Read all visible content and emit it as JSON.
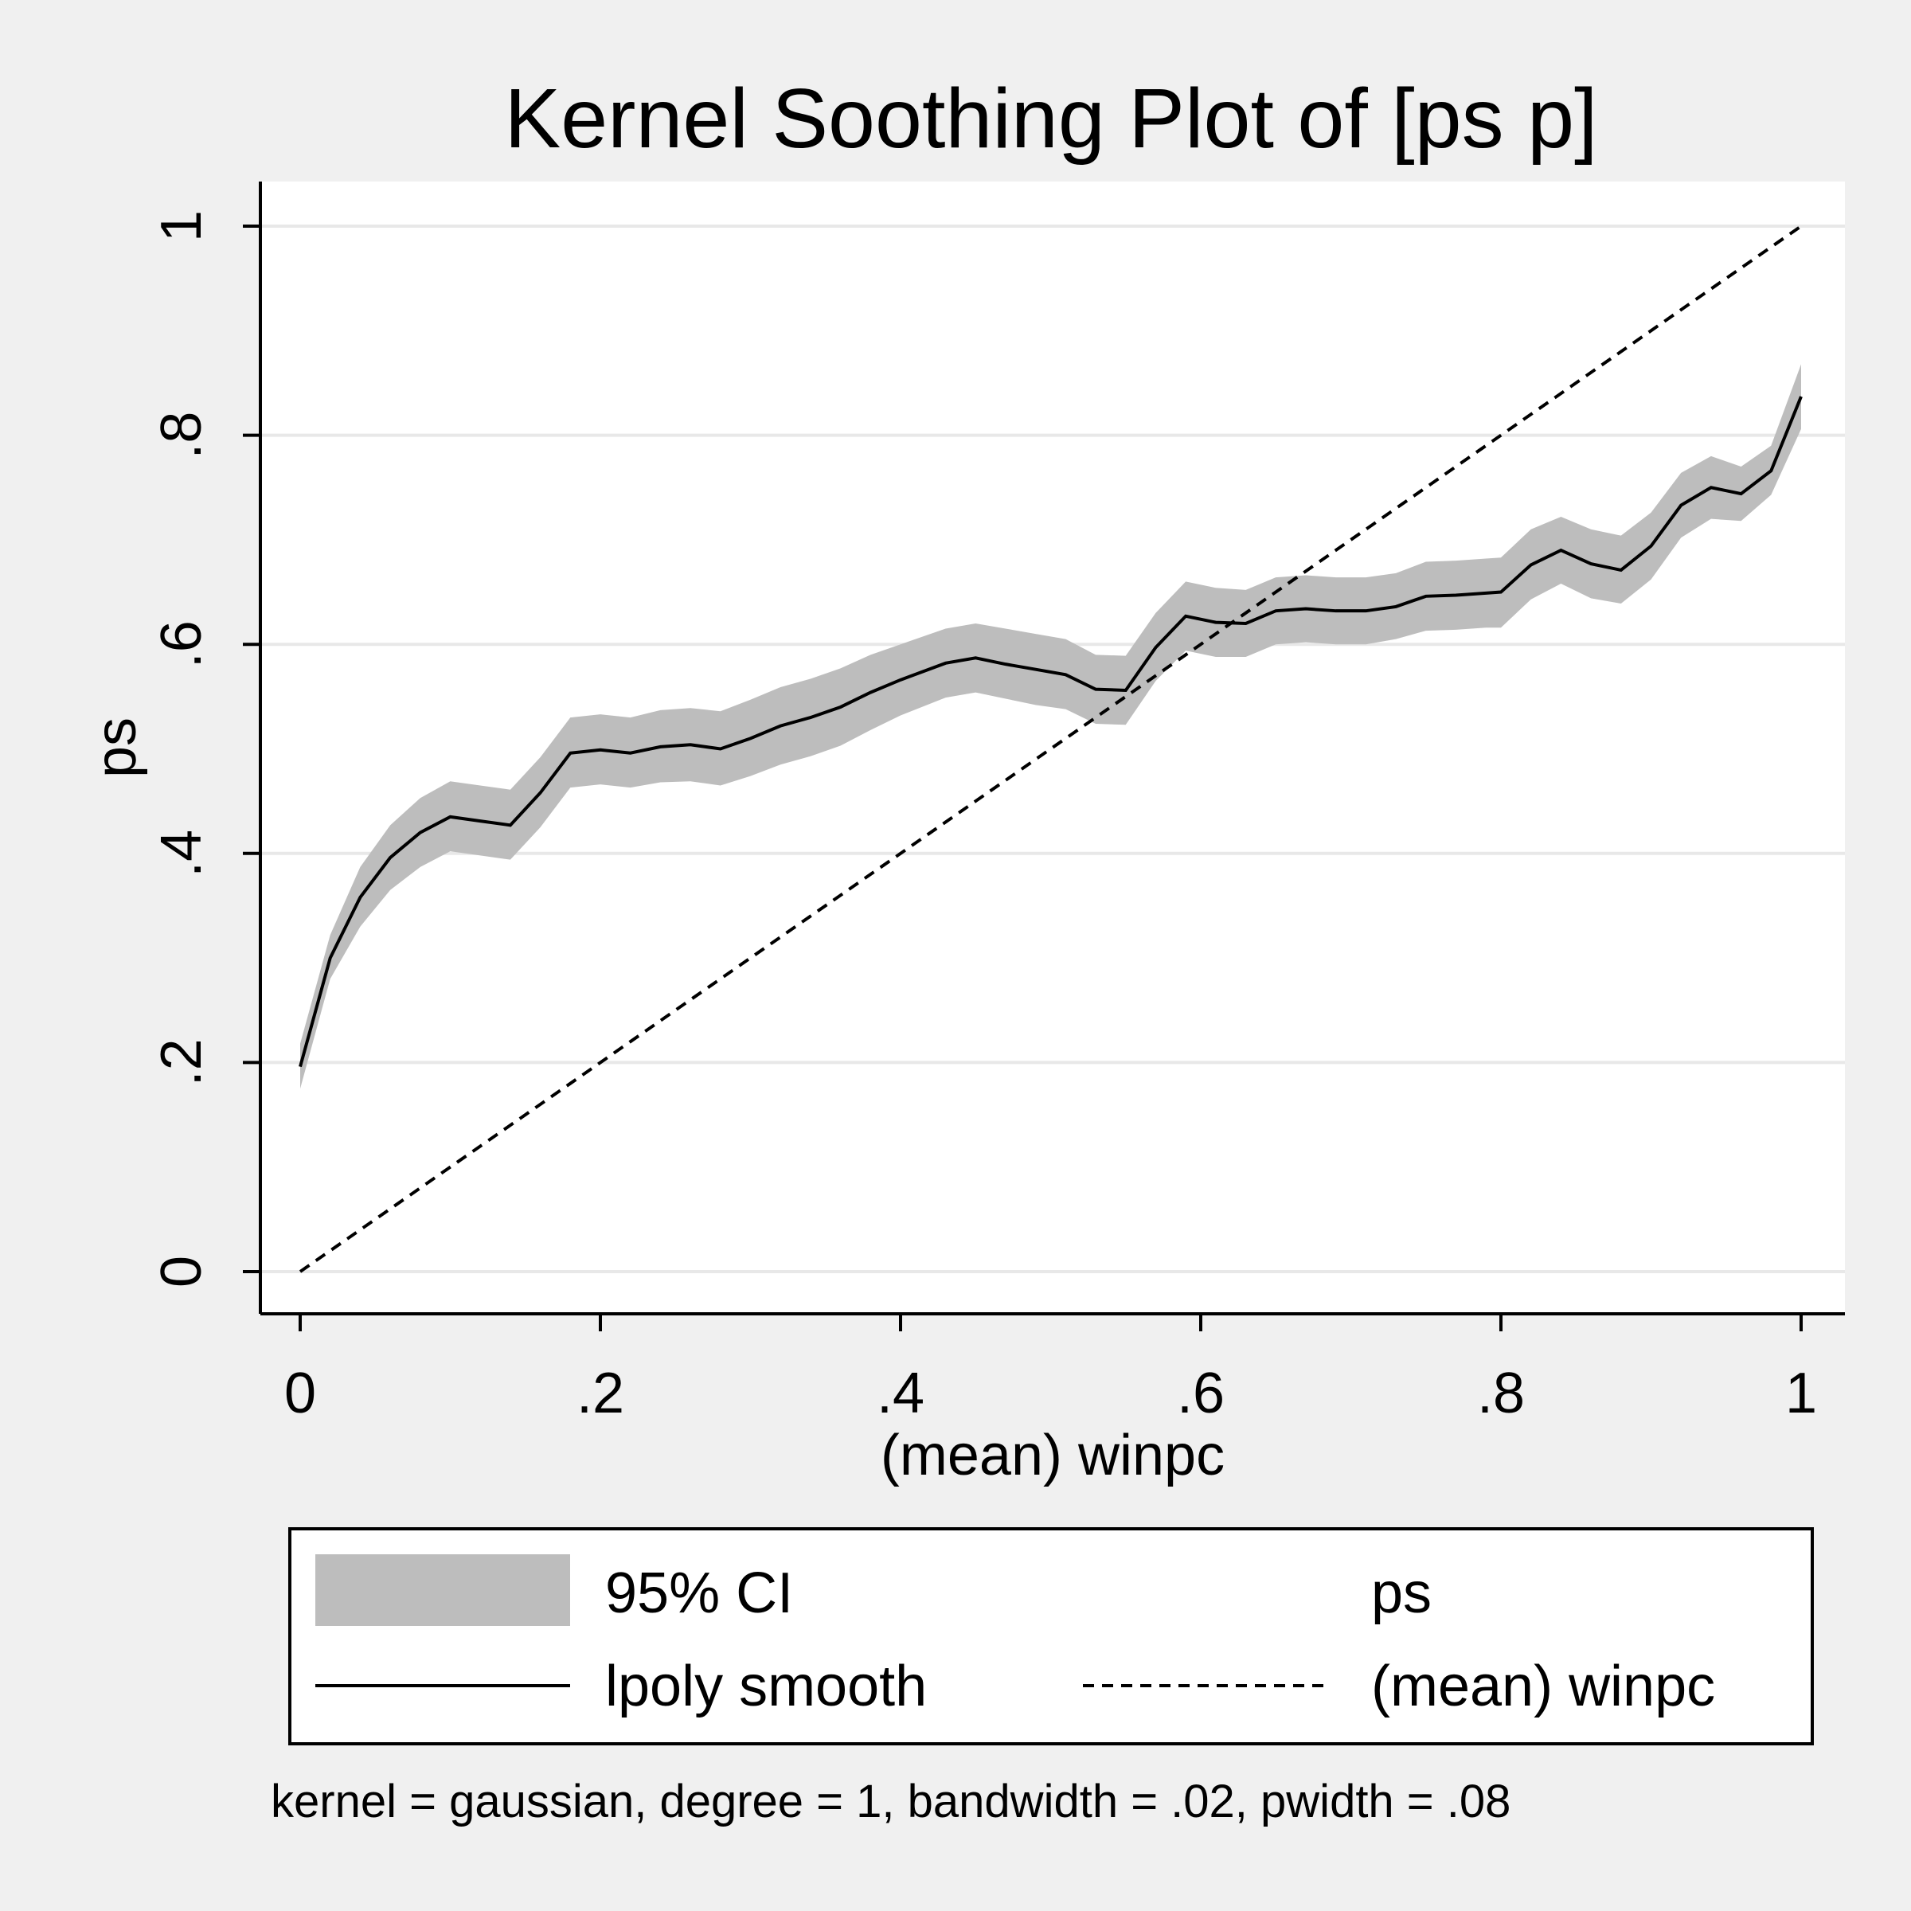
{
  "chart_data": {
    "type": "line",
    "title": "Kernel Soothing Plot of [ps p]",
    "xlabel": "(mean) winpc",
    "ylabel": "ps",
    "note": "kernel = gaussian, degree = 1, bandwidth = .02, pwidth = .08",
    "xlim": [
      0,
      1
    ],
    "ylim": [
      0,
      1
    ],
    "x_ticks": [
      0,
      0.2,
      0.4,
      0.6,
      0.8,
      1
    ],
    "x_tick_labels": [
      "0",
      ".2",
      ".4",
      ".6",
      ".8",
      "1"
    ],
    "y_ticks": [
      0,
      0.2,
      0.4,
      0.6,
      0.8,
      1
    ],
    "y_tick_labels": [
      "0",
      ".2",
      ".4",
      ".6",
      ".8",
      "1"
    ],
    "grid": "horizontal",
    "legend": {
      "position": "bottom",
      "entries": [
        "95% CI",
        "ps",
        "lpoly smooth",
        "(mean) winpc"
      ]
    },
    "colors": {
      "band": "#bdbdbd",
      "line": "#000000",
      "plot_bg": "#ffffff",
      "page_bg": "#f0f0f0",
      "grid": "#e8e8e8"
    },
    "series": [
      {
        "name": "95% CI",
        "kind": "band",
        "x": [
          0,
          0.02,
          0.04,
          0.06,
          0.08,
          0.1,
          0.12,
          0.14,
          0.16,
          0.18,
          0.2,
          0.22,
          0.24,
          0.26,
          0.28,
          0.3,
          0.32,
          0.34,
          0.36,
          0.38,
          0.4,
          0.43,
          0.45,
          0.47,
          0.49,
          0.51,
          0.53,
          0.55,
          0.57,
          0.59,
          0.61,
          0.63,
          0.65,
          0.67,
          0.69,
          0.71,
          0.73,
          0.75,
          0.77,
          0.79,
          0.8,
          0.82,
          0.84,
          0.86,
          0.88,
          0.9,
          0.92,
          0.94,
          0.96,
          0.98,
          1.0
        ],
        "lower": [
          0.175,
          0.28,
          0.33,
          0.365,
          0.387,
          0.402,
          0.398,
          0.394,
          0.425,
          0.463,
          0.466,
          0.463,
          0.468,
          0.469,
          0.465,
          0.474,
          0.485,
          0.493,
          0.503,
          0.518,
          0.532,
          0.549,
          0.554,
          0.548,
          0.542,
          0.538,
          0.524,
          0.523,
          0.565,
          0.594,
          0.588,
          0.588,
          0.6,
          0.602,
          0.6,
          0.6,
          0.605,
          0.613,
          0.614,
          0.616,
          0.616,
          0.643,
          0.658,
          0.644,
          0.639,
          0.662,
          0.702,
          0.72,
          0.718,
          0.743,
          0.806
        ],
        "upper": [
          0.218,
          0.322,
          0.387,
          0.427,
          0.453,
          0.469,
          0.465,
          0.461,
          0.492,
          0.53,
          0.533,
          0.53,
          0.537,
          0.539,
          0.536,
          0.547,
          0.559,
          0.567,
          0.577,
          0.59,
          0.6,
          0.615,
          0.62,
          0.615,
          0.61,
          0.605,
          0.59,
          0.589,
          0.63,
          0.66,
          0.654,
          0.652,
          0.664,
          0.666,
          0.664,
          0.664,
          0.668,
          0.679,
          0.68,
          0.682,
          0.683,
          0.71,
          0.722,
          0.71,
          0.704,
          0.726,
          0.764,
          0.78,
          0.77,
          0.79,
          0.868
        ]
      },
      {
        "name": "lpoly smooth",
        "kind": "line",
        "style": "solid",
        "x": [
          0,
          0.02,
          0.04,
          0.06,
          0.08,
          0.1,
          0.12,
          0.14,
          0.16,
          0.18,
          0.2,
          0.22,
          0.24,
          0.26,
          0.28,
          0.3,
          0.32,
          0.34,
          0.36,
          0.38,
          0.4,
          0.43,
          0.45,
          0.47,
          0.49,
          0.51,
          0.53,
          0.55,
          0.57,
          0.59,
          0.61,
          0.63,
          0.65,
          0.67,
          0.69,
          0.71,
          0.73,
          0.75,
          0.77,
          0.79,
          0.8,
          0.82,
          0.84,
          0.86,
          0.88,
          0.9,
          0.92,
          0.94,
          0.96,
          0.98,
          1.0
        ],
        "y": [
          0.196,
          0.3,
          0.358,
          0.396,
          0.42,
          0.435,
          0.431,
          0.427,
          0.458,
          0.496,
          0.499,
          0.496,
          0.502,
          0.504,
          0.5,
          0.51,
          0.522,
          0.53,
          0.54,
          0.554,
          0.566,
          0.582,
          0.587,
          0.581,
          0.576,
          0.571,
          0.557,
          0.556,
          0.597,
          0.627,
          0.621,
          0.62,
          0.632,
          0.634,
          0.632,
          0.632,
          0.636,
          0.646,
          0.647,
          0.649,
          0.65,
          0.676,
          0.69,
          0.677,
          0.671,
          0.694,
          0.733,
          0.75,
          0.744,
          0.766,
          0.837
        ]
      },
      {
        "name": "(mean) winpc",
        "kind": "line",
        "style": "dashed",
        "x": [
          0,
          1
        ],
        "y": [
          0,
          1
        ]
      }
    ]
  }
}
